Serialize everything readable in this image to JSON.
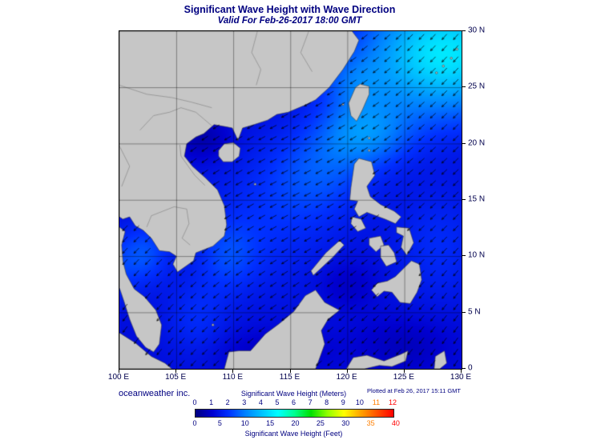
{
  "header": {
    "title": "Significant Wave Height with Wave Direction",
    "subtitle": "Valid For Feb-26-2017 18:00 GMT"
  },
  "map": {
    "extent": {
      "lon_min": 100,
      "lon_max": 130,
      "lat_min": 0,
      "lat_max": 30
    },
    "grid_interval_deg": 5,
    "lat_labels": [
      "30 N",
      "25 N",
      "20 N",
      "15 N",
      "10 N",
      "5 N",
      "0"
    ],
    "lon_labels": [
      "100 E",
      "105 E",
      "110 E",
      "115 E",
      "120 E",
      "125 E",
      "130 E"
    ],
    "land_color": "#c6c6c6",
    "coast_color": "#3c3c3c",
    "border_line_color": "#6e6e6e",
    "grid_color": "rgba(0,0,0,0.75)",
    "arrow_color": "#000000"
  },
  "footer": {
    "credit": "oceanweather inc.",
    "plotted_at": "Plotted at Feb 26, 2017 15:11 GMT"
  },
  "colorbar": {
    "title_meters": "Significant Wave Height (Meters)",
    "title_feet": "Significant Wave Height (Feet)",
    "meters_ticks": [
      "0",
      "1",
      "2",
      "3",
      "4",
      "5",
      "6",
      "7",
      "8",
      "9",
      "10",
      "11",
      "12"
    ],
    "feet_ticks": [
      "0",
      "5",
      "10",
      "15",
      "20",
      "25",
      "30",
      "35",
      "40"
    ],
    "meters_tick_colors": [
      "#000080",
      "#000080",
      "#000080",
      "#000080",
      "#000080",
      "#000080",
      "#000080",
      "#000080",
      "#000080",
      "#000080",
      "#000080",
      "#ff7f00",
      "#ff0000"
    ],
    "feet_tick_colors": [
      "#000080",
      "#000080",
      "#000080",
      "#000080",
      "#000080",
      "#000080",
      "#000080",
      "#ff7f00",
      "#ff0000"
    ],
    "stops": [
      "#000080",
      "#0000d0",
      "#0030ff",
      "#0080ff",
      "#00c0ff",
      "#00ffff",
      "#00ff90",
      "#00e000",
      "#90ff00",
      "#ffff00",
      "#ffa500",
      "#ff5000",
      "#ff0000"
    ],
    "value_range_meters": [
      0,
      12
    ],
    "feet_per_meter": 3.28084
  }
}
